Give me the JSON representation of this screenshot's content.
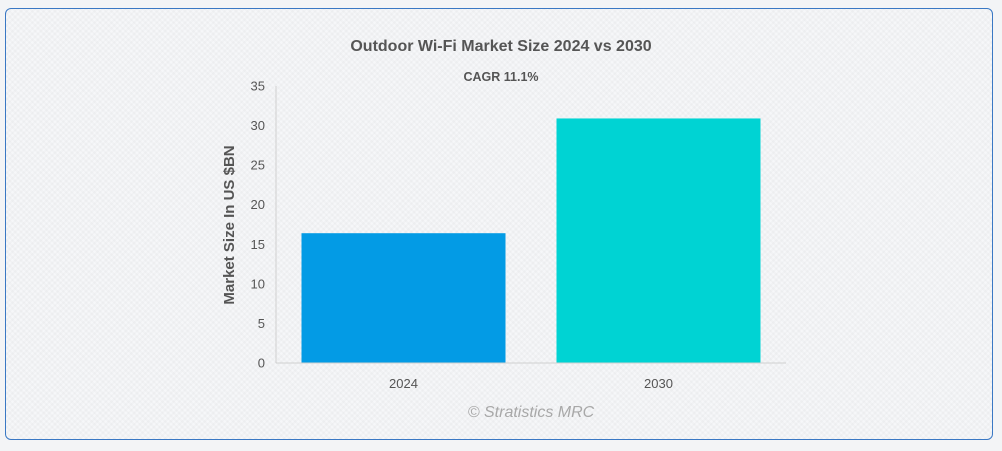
{
  "chart_data": {
    "type": "bar",
    "title": "Outdoor Wi-Fi Market Size 2024 vs 2030",
    "subtitle": "CAGR 11.1%",
    "xlabel": "",
    "ylabel": "Market Size In US $BN",
    "categories": [
      "2024",
      "2030"
    ],
    "values": [
      16.4,
      30.9
    ],
    "ylim": [
      0,
      35
    ],
    "yticks": [
      0,
      5,
      10,
      15,
      20,
      25,
      30,
      35
    ],
    "colors": [
      "#039be5",
      "#00d3d3"
    ],
    "grid": false,
    "legend": "none"
  },
  "watermark": "© Stratistics MRC"
}
